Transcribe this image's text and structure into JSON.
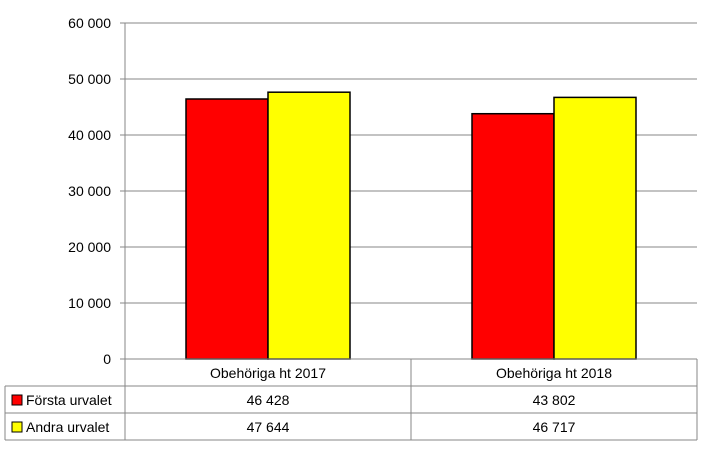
{
  "chart_data": {
    "type": "bar",
    "title": "",
    "xlabel": "",
    "ylabel": "",
    "ylim": [
      0,
      60000
    ],
    "yticks": [
      0,
      10000,
      20000,
      30000,
      40000,
      50000,
      60000
    ],
    "ytick_labels": [
      "0",
      "10 000",
      "20 000",
      "30 000",
      "40 000",
      "50 000",
      "60 000"
    ],
    "grid": true,
    "legend": "data-table",
    "categories": [
      "Obehöriga ht 2017",
      "Obehöriga ht 2018"
    ],
    "series": [
      {
        "name": "Första urvalet",
        "color": "#ff0000",
        "values": [
          46428,
          43802
        ],
        "value_labels": [
          "46 428",
          "43 802"
        ]
      },
      {
        "name": "Andra urvalet",
        "color": "#ffff00",
        "values": [
          47644,
          46717
        ],
        "value_labels": [
          "47 644",
          "46 717"
        ]
      }
    ]
  }
}
